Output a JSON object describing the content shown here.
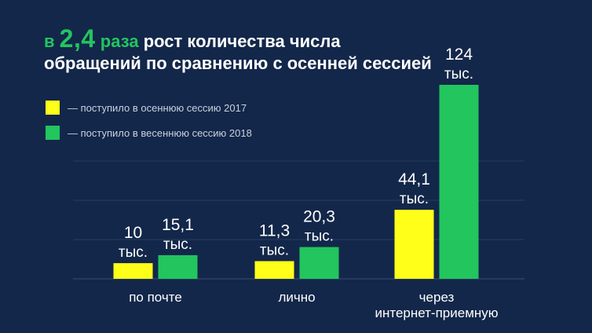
{
  "title": {
    "prefix": "в",
    "highlight": "2,4",
    "unit": "раза",
    "rest_line1": "рост количества числа",
    "line2": "обращений по сравнению с осенней сессией"
  },
  "chart_data": {
    "type": "bar",
    "categories": [
      [
        "по почте"
      ],
      [
        "лично"
      ],
      [
        "через",
        "интернет-приемную"
      ]
    ],
    "series": [
      {
        "name": "— поступило в осеннюю сессию 2017",
        "color": "#ffff1a",
        "values": [
          10,
          11.3,
          44.1
        ],
        "labels": [
          [
            "10",
            "тыс."
          ],
          [
            "11,3",
            "тыс."
          ],
          [
            "44,1",
            "тыс."
          ]
        ]
      },
      {
        "name": "— поступило в весеннюю сессию 2018",
        "color": "#22c55e",
        "values": [
          15.1,
          20.3,
          124
        ],
        "labels": [
          [
            "15,1",
            "тыс."
          ],
          [
            "20,3",
            "тыс."
          ],
          [
            "124",
            "тыс."
          ]
        ]
      }
    ],
    "ylim": [
      0,
      124
    ],
    "grid": true,
    "legend": "top-left"
  }
}
